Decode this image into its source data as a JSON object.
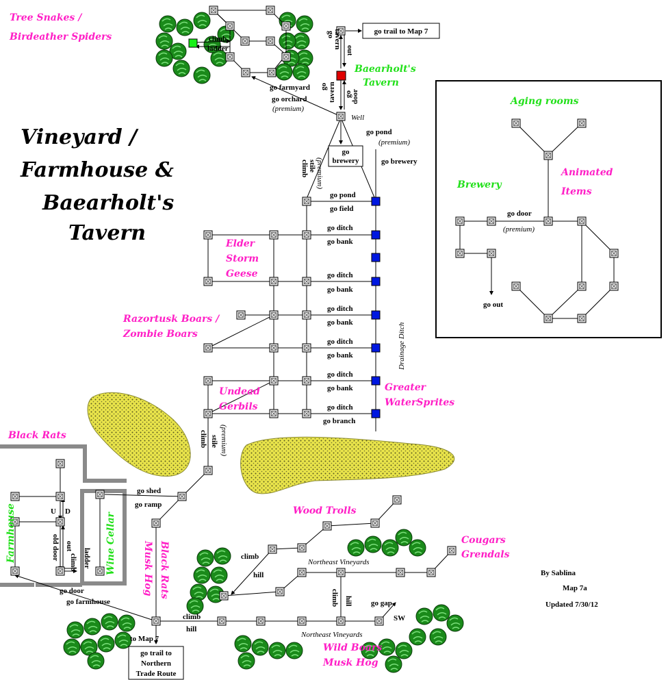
{
  "title": {
    "line1": "Vineyard /",
    "line2": "Farmhouse &",
    "line3": "Baearholt's",
    "line4": "Tavern"
  },
  "credits": {
    "author": "By Sablina",
    "map_id": "Map 7a",
    "updated": "Updated 7/30/12"
  },
  "mobs": {
    "tree_snakes": "Tree Snakes /",
    "birdeater": "Birdeather Spiders",
    "elder1": "Elder",
    "elder2": "Storm",
    "elder3": "Geese",
    "razor1": "Razortusk Boars /",
    "razor2": "Zombie Boars",
    "undead1": "Undead",
    "undead2": "Gerbils",
    "greater1": "Greater",
    "greater2": "WaterSprites",
    "black_rats": "Black Rats",
    "black_rats_v": "Black Rats",
    "musk_hog_v": "Musk Hog",
    "wood_trolls": "Wood Trolls",
    "cougars": "Cougars",
    "grendals": "Grendals",
    "wild_boars": "Wild Boars",
    "musk_hog": "Musk Hog",
    "animated1": "Animated",
    "animated2": "Items"
  },
  "places": {
    "tavern1": "Baearholt's",
    "tavern2": "Tavern",
    "aging": "Aging rooms",
    "brewery": "Brewery",
    "farmhouse": "Farmhouse",
    "wine_cellar": "Wine Cellar"
  },
  "boxes": {
    "trail7": "go trail to Map 7",
    "brewery1": "go",
    "brewery2": "brewery",
    "north1": "go trail to",
    "north2": "Northern",
    "north3": "Trade Route"
  },
  "labels": {
    "climb": "climb",
    "ladder": "ladder",
    "go_farmyard": "go farmyard",
    "go_orchard": "go orchard",
    "premium": "(premium)",
    "tavern": "tavern",
    "out": "out",
    "go": "go",
    "door": "door",
    "well": "Well",
    "go_pond": "go pond",
    "go_brewery": "go brewery",
    "stile": "stile",
    "go_field": "go field",
    "go_ditch": "go ditch",
    "go_bank": "go bank",
    "go_branch": "go branch",
    "drainage": "Drainage Ditch",
    "go_door": "go door",
    "go_out": "go out",
    "go_shed": "go shed",
    "go_ramp": "go ramp",
    "u": "U",
    "d": "D",
    "old_door": "old door",
    "go_farmhouse": "go farmhouse",
    "to_map7": "to Map 7",
    "hill": "hill",
    "ne_vineyards": "Northeast Vineyards",
    "go_gap": "go gap",
    "sw": "SW"
  },
  "colors": {
    "mob": "#ff1fc6",
    "place": "#22e01a",
    "room_blue": "#0018e0",
    "room_red": "#e00000",
    "room_green": "#18f018",
    "field": "#e8e34a",
    "tree": "#1a8a1a"
  }
}
